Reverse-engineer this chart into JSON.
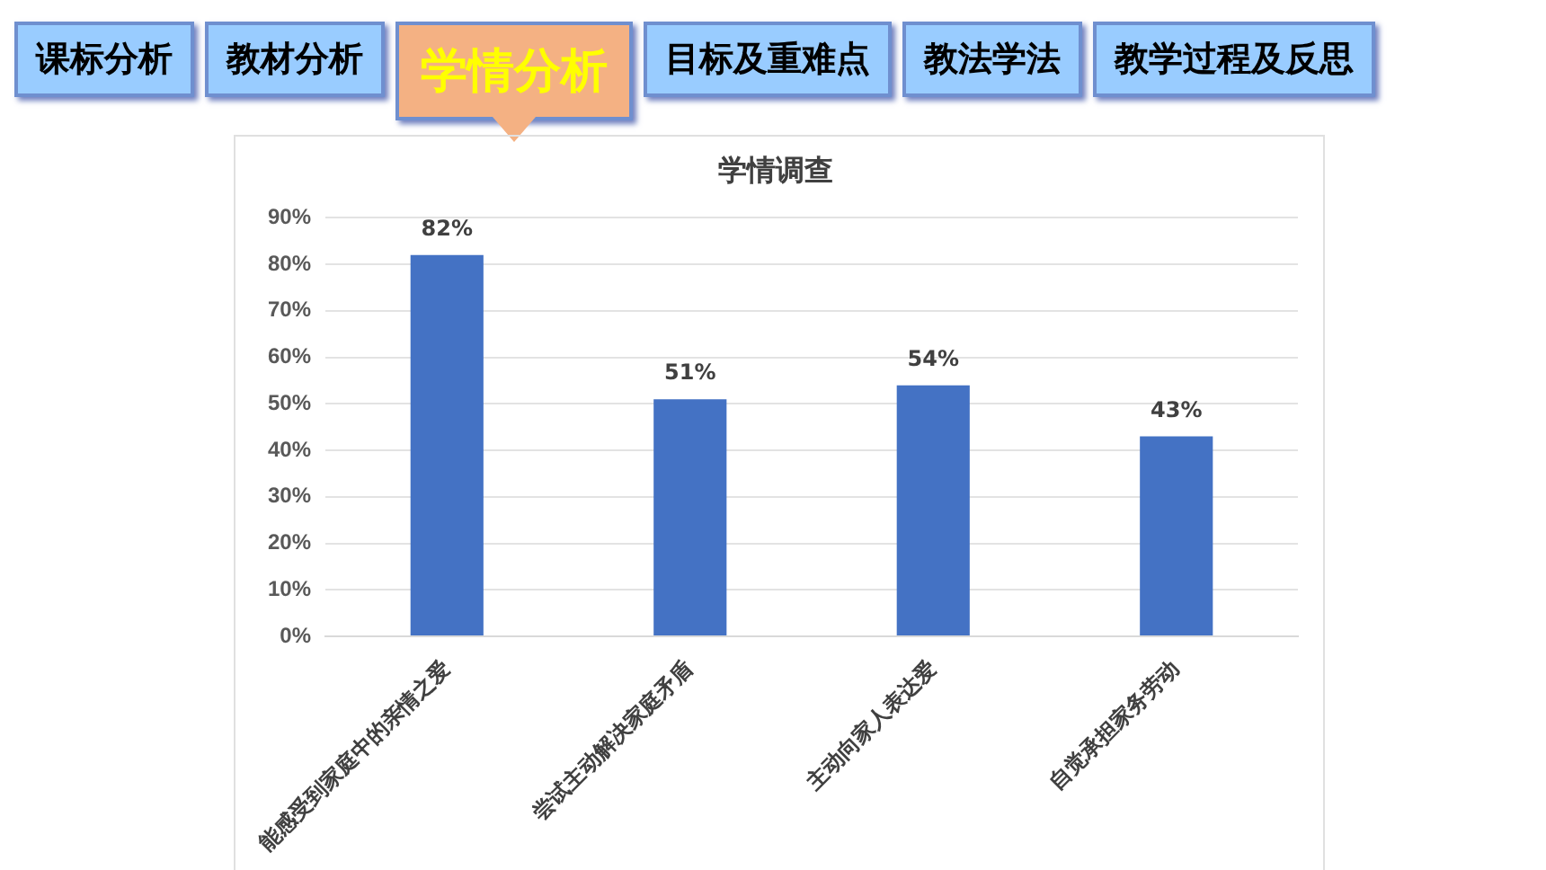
{
  "chart_data": {
    "type": "bar",
    "title": "学情调查",
    "categories": [
      "能感受到家庭中的亲情之爱",
      "尝试主动解决家庭矛盾",
      "主动向家人表达爱",
      "自觉承担家务劳动"
    ],
    "values": [
      82,
      51,
      54,
      43
    ],
    "color": "#4472c4",
    "value_labels": [
      "82%",
      "51%",
      "54%",
      "43%"
    ],
    "ylim": [
      0,
      90
    ],
    "yticks": [
      {
        "value": 0,
        "label": "0%"
      },
      {
        "value": 10,
        "label": "10%"
      },
      {
        "value": 20,
        "label": "20%"
      },
      {
        "value": 30,
        "label": "30%"
      },
      {
        "value": 40,
        "label": "40%"
      },
      {
        "value": 50,
        "label": "50%"
      },
      {
        "value": 60,
        "label": "60%"
      },
      {
        "value": 70,
        "label": "70%"
      },
      {
        "value": 80,
        "label": "80%"
      },
      {
        "value": 90,
        "label": "90%"
      }
    ],
    "grid": "y",
    "legend": false,
    "annotations": [
      "课标分析",
      "教材分析",
      "学情分析",
      "目标及重难点",
      "教法学法",
      "教学过程及反思"
    ]
  }
}
